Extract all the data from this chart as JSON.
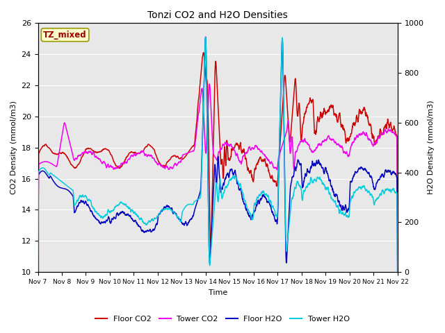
{
  "title": "Tonzi CO2 and H2O Densities",
  "xlabel": "Time",
  "ylabel_left": "CO2 Density (mmol/m3)",
  "ylabel_right": "H2O Density (mmol/m3)",
  "ylim_left": [
    10,
    26
  ],
  "ylim_right": [
    0,
    1000
  ],
  "annotation": "TZ_mixed",
  "colors": {
    "floor_co2": "#cc0000",
    "tower_co2": "#ee00ee",
    "floor_h2o": "#0000bb",
    "tower_h2o": "#00ccdd"
  },
  "x_tick_labels": [
    "Nov 7",
    "Nov 8",
    "Nov 9",
    "Nov 10",
    "Nov 11",
    "Nov 12",
    "Nov 13",
    "Nov 14",
    "Nov 15",
    "Nov 16",
    "Nov 17",
    "Nov 18",
    "Nov 19",
    "Nov 20",
    "Nov 21",
    "Nov 22"
  ],
  "background_color": "#e8e8e8",
  "grid_color": "#ffffff",
  "lw": 1.1
}
